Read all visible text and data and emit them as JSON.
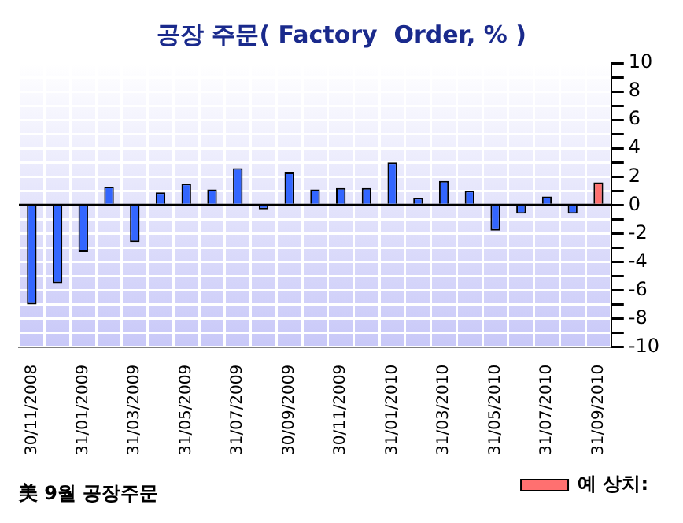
{
  "chart_data": {
    "type": "bar",
    "title": "공장 주문( Factory  Order, % )",
    "categories": [
      "30/11/2008",
      null,
      "31/01/2009",
      null,
      "31/03/2009",
      null,
      "31/05/2009",
      null,
      "31/07/2009",
      null,
      "30/09/2009",
      null,
      "30/11/2009",
      null,
      "31/01/2010",
      null,
      "31/03/2010",
      null,
      "31/05/2010",
      null,
      "31/07/2010",
      null,
      "31/09/2010"
    ],
    "series": [
      {
        "color": "#3366ff",
        "values": [
          -7.0,
          -5.5,
          -3.3,
          1.3,
          -2.6,
          0.9,
          1.5,
          1.1,
          2.6,
          -0.3,
          2.3,
          1.1,
          1.2,
          1.2,
          3.0,
          0.5,
          1.7,
          1.0,
          -1.8,
          -0.6,
          0.6,
          -0.6,
          null
        ]
      },
      {
        "name": "예 상치:",
        "color": "#ff7070",
        "values": [
          null,
          null,
          null,
          null,
          null,
          null,
          null,
          null,
          null,
          null,
          null,
          null,
          null,
          null,
          null,
          null,
          null,
          null,
          null,
          null,
          null,
          null,
          1.6
        ]
      }
    ],
    "ylim": [
      -10,
      10
    ],
    "yticks": [
      -10,
      {
        "value": -9,
        "label": null
      },
      -8,
      {
        "value": -7,
        "label": null
      },
      -6,
      {
        "value": -5,
        "label": null
      },
      -4,
      {
        "value": -3,
        "label": null
      },
      -2,
      {
        "value": -1,
        "label": null
      },
      0,
      {
        "value": 1,
        "label": null
      },
      2,
      {
        "value": 3,
        "label": null
      },
      4,
      {
        "value": 5,
        "label": null
      },
      6,
      {
        "value": 7,
        "label": null
      },
      8,
      {
        "value": 9,
        "label": null
      },
      10
    ],
    "grid": true,
    "legend": "bottom right",
    "annotations": [
      "美 9월 공장주문"
    ]
  }
}
